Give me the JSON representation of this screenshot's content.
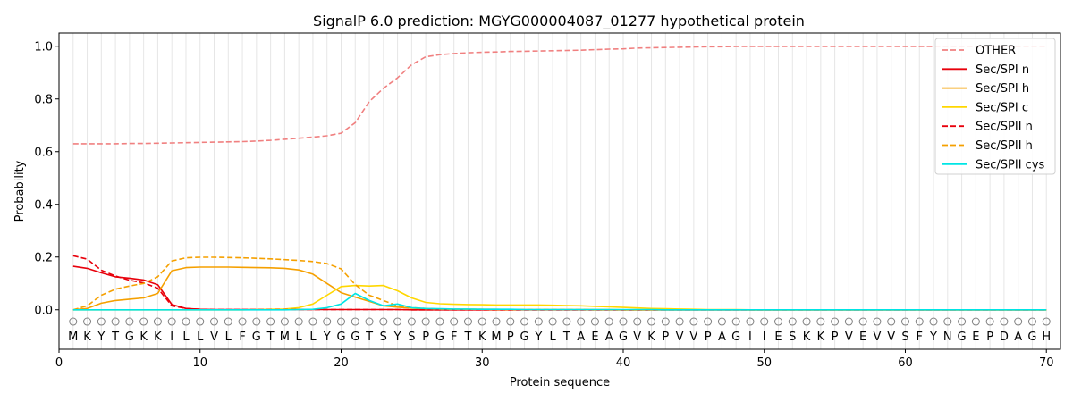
{
  "chart_data": {
    "type": "line",
    "title": "SignalP 6.0 prediction: MGYG000004087_01277 hypothetical protein",
    "xlabel": "Protein sequence",
    "ylabel": "Probability",
    "xlim": [
      0,
      71
    ],
    "ylim": [
      -0.15,
      1.05
    ],
    "xticks": [
      0,
      10,
      20,
      30,
      40,
      50,
      60,
      70
    ],
    "yticks": [
      0.0,
      0.2,
      0.4,
      0.6,
      0.8,
      1.0
    ],
    "grid": "vertical lines at each residue",
    "legend_position": "top-right",
    "sequence": [
      "M",
      "K",
      "Y",
      "T",
      "G",
      "K",
      "K",
      "I",
      "L",
      "L",
      "V",
      "L",
      "F",
      "G",
      "T",
      "M",
      "L",
      "L",
      "Y",
      "G",
      "G",
      "T",
      "S",
      "Y",
      "S",
      "P",
      "G",
      "F",
      "T",
      "K",
      "M",
      "P",
      "G",
      "Y",
      "L",
      "T",
      "A",
      "E",
      "A",
      "G",
      "V",
      "K",
      "P",
      "V",
      "V",
      "P",
      "A",
      "G",
      "I",
      "I",
      "E",
      "S",
      "K",
      "K",
      "P",
      "V",
      "E",
      "V",
      "V",
      "S",
      "F",
      "Y",
      "N",
      "G",
      "E",
      "P",
      "D",
      "A",
      "G",
      "H"
    ],
    "marker_y": -0.045,
    "series": [
      {
        "name": "OTHER",
        "color": "#f08080",
        "dash": "dashed",
        "values": [
          0.63,
          0.63,
          0.63,
          0.63,
          0.631,
          0.631,
          0.632,
          0.633,
          0.634,
          0.635,
          0.636,
          0.637,
          0.638,
          0.64,
          0.643,
          0.647,
          0.651,
          0.655,
          0.66,
          0.67,
          0.71,
          0.79,
          0.84,
          0.88,
          0.93,
          0.96,
          0.968,
          0.972,
          0.975,
          0.977,
          0.978,
          0.98,
          0.981,
          0.982,
          0.983,
          0.984,
          0.985,
          0.987,
          0.989,
          0.99,
          0.993,
          0.994,
          0.995,
          0.996,
          0.997,
          0.998,
          0.998,
          0.999,
          0.999,
          0.999,
          0.999,
          0.999,
          0.999,
          0.999,
          0.999,
          0.999,
          0.999,
          0.999,
          0.999,
          0.999,
          0.999,
          0.999,
          0.999,
          0.999,
          0.999,
          0.999,
          0.999,
          0.999,
          0.999,
          0.999
        ]
      },
      {
        "name": "Sec/SPI n",
        "color": "#e8000b",
        "dash": "solid",
        "values": [
          0.165,
          0.157,
          0.14,
          0.125,
          0.12,
          0.113,
          0.095,
          0.02,
          0.005,
          0.002,
          0.001,
          0.001,
          0.001,
          0.001,
          0.001,
          0.001,
          0.001,
          0.001,
          0.001,
          0.001,
          0.001,
          0.001,
          0.001,
          0.001,
          0.0,
          0.0,
          0.0,
          0.0,
          0.0,
          0.0,
          0.0,
          0.0,
          0.0,
          0.0,
          0.0,
          0.0,
          0.0,
          0.0,
          0.0,
          0.0,
          0.0,
          0.0,
          0.0,
          0.0,
          0.0,
          0.0,
          0.0,
          0.0,
          0.0,
          0.0,
          0.0,
          0.0,
          0.0,
          0.0,
          0.0,
          0.0,
          0.0,
          0.0,
          0.0,
          0.0,
          0.0,
          0.0,
          0.0,
          0.0,
          0.0,
          0.0,
          0.0,
          0.0,
          0.0,
          0.0
        ]
      },
      {
        "name": "Sec/SPI h",
        "color": "#f5a000",
        "dash": "solid",
        "values": [
          0.0,
          0.005,
          0.025,
          0.035,
          0.04,
          0.045,
          0.062,
          0.148,
          0.16,
          0.162,
          0.162,
          0.162,
          0.161,
          0.16,
          0.159,
          0.157,
          0.151,
          0.135,
          0.1,
          0.065,
          0.048,
          0.032,
          0.015,
          0.01,
          0.006,
          0.004,
          0.003,
          0.002,
          0.002,
          0.002,
          0.002,
          0.001,
          0.001,
          0.001,
          0.001,
          0.001,
          0.001,
          0.001,
          0.001,
          0.0,
          0.0,
          0.0,
          0.0,
          0.0,
          0.0,
          0.0,
          0.0,
          0.0,
          0.0,
          0.0,
          0.0,
          0.0,
          0.0,
          0.0,
          0.0,
          0.0,
          0.0,
          0.0,
          0.0,
          0.0,
          0.0,
          0.0,
          0.0,
          0.0,
          0.0,
          0.0,
          0.0,
          0.0,
          0.0,
          0.0
        ]
      },
      {
        "name": "Sec/SPI c",
        "color": "#ffd700",
        "dash": "solid",
        "values": [
          0.0,
          0.0,
          0.0,
          0.0,
          0.0,
          0.0,
          0.0,
          0.0,
          0.0,
          0.0,
          0.0,
          0.0,
          0.0,
          0.001,
          0.002,
          0.003,
          0.008,
          0.022,
          0.055,
          0.088,
          0.092,
          0.09,
          0.092,
          0.072,
          0.045,
          0.028,
          0.023,
          0.021,
          0.02,
          0.019,
          0.018,
          0.018,
          0.018,
          0.018,
          0.017,
          0.016,
          0.015,
          0.013,
          0.011,
          0.009,
          0.007,
          0.005,
          0.004,
          0.003,
          0.002,
          0.001,
          0.001,
          0.001,
          0.0,
          0.0,
          0.0,
          0.0,
          0.0,
          0.0,
          0.0,
          0.0,
          0.0,
          0.0,
          0.0,
          0.0,
          0.0,
          0.0,
          0.0,
          0.0,
          0.0,
          0.0,
          0.0,
          0.0,
          0.0,
          0.0
        ]
      },
      {
        "name": "Sec/SPII n",
        "color": "#e8000b",
        "dash": "dashed",
        "values": [
          0.205,
          0.192,
          0.15,
          0.128,
          0.112,
          0.102,
          0.082,
          0.015,
          0.005,
          0.002,
          0.001,
          0.001,
          0.001,
          0.001,
          0.001,
          0.001,
          0.001,
          0.001,
          0.001,
          0.001,
          0.001,
          0.001,
          0.001,
          0.001,
          0.0,
          0.0,
          0.0,
          0.0,
          0.0,
          0.0,
          0.0,
          0.0,
          0.0,
          0.0,
          0.0,
          0.0,
          0.0,
          0.0,
          0.0,
          0.0,
          0.0,
          0.0,
          0.0,
          0.0,
          0.0,
          0.0,
          0.0,
          0.0,
          0.0,
          0.0,
          0.0,
          0.0,
          0.0,
          0.0,
          0.0,
          0.0,
          0.0,
          0.0,
          0.0,
          0.0,
          0.0,
          0.0,
          0.0,
          0.0,
          0.0,
          0.0,
          0.0,
          0.0,
          0.0,
          0.0
        ]
      },
      {
        "name": "Sec/SPII h",
        "color": "#f5a000",
        "dash": "dashed",
        "values": [
          0.0,
          0.015,
          0.055,
          0.078,
          0.09,
          0.1,
          0.125,
          0.185,
          0.197,
          0.199,
          0.199,
          0.198,
          0.197,
          0.195,
          0.193,
          0.19,
          0.187,
          0.183,
          0.175,
          0.155,
          0.095,
          0.055,
          0.035,
          0.015,
          0.008,
          0.005,
          0.003,
          0.002,
          0.002,
          0.002,
          0.001,
          0.001,
          0.001,
          0.001,
          0.001,
          0.001,
          0.001,
          0.0,
          0.0,
          0.0,
          0.0,
          0.0,
          0.0,
          0.0,
          0.0,
          0.0,
          0.0,
          0.0,
          0.0,
          0.0,
          0.0,
          0.0,
          0.0,
          0.0,
          0.0,
          0.0,
          0.0,
          0.0,
          0.0,
          0.0,
          0.0,
          0.0,
          0.0,
          0.0,
          0.0,
          0.0,
          0.0,
          0.0,
          0.0,
          0.0
        ]
      },
      {
        "name": "Sec/SPII cys",
        "color": "#00e5e5",
        "dash": "solid",
        "values": [
          0.0,
          0.0,
          0.0,
          0.0,
          0.0,
          0.0,
          0.0,
          0.0,
          0.0,
          0.0,
          0.0,
          0.0,
          0.0,
          0.0,
          0.0,
          0.0,
          0.001,
          0.002,
          0.008,
          0.022,
          0.062,
          0.035,
          0.015,
          0.022,
          0.008,
          0.005,
          0.004,
          0.003,
          0.003,
          0.002,
          0.002,
          0.002,
          0.001,
          0.001,
          0.001,
          0.001,
          0.001,
          0.001,
          0.001,
          0.001,
          0.001,
          0.001,
          0.0,
          0.0,
          0.0,
          0.0,
          0.0,
          0.0,
          0.0,
          0.0,
          0.0,
          0.0,
          0.0,
          0.0,
          0.0,
          0.0,
          0.0,
          0.0,
          0.0,
          0.0,
          0.0,
          0.0,
          0.0,
          0.0,
          0.0,
          0.0,
          0.0,
          0.0,
          0.0,
          0.0
        ]
      }
    ]
  }
}
